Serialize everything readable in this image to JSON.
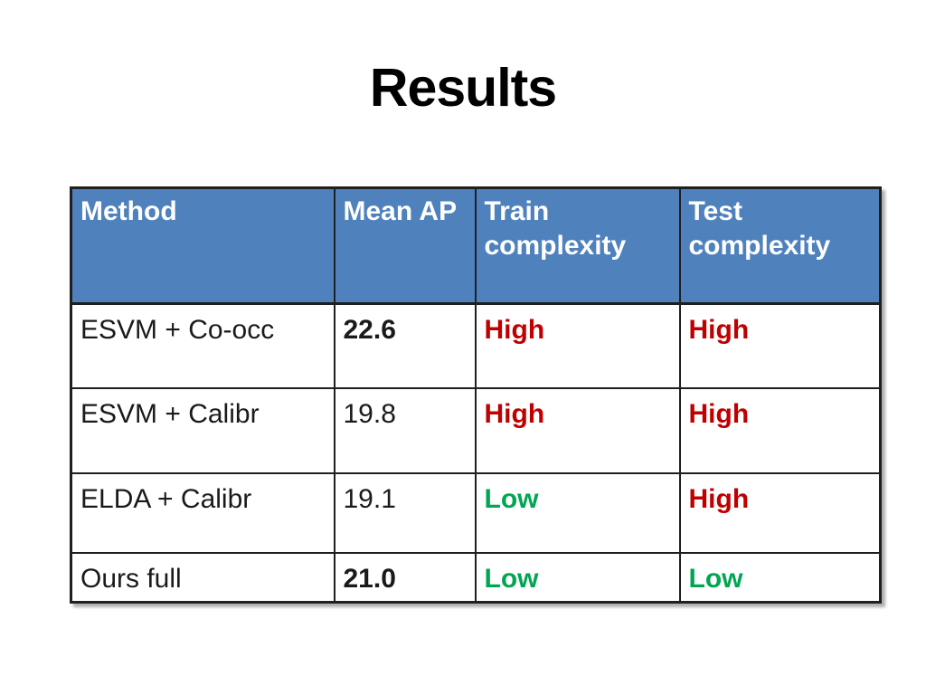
{
  "slide": {
    "title": "Results"
  },
  "table": {
    "columns": [
      "Method",
      "Mean AP",
      "Train complexity",
      "Test complexity"
    ],
    "rows": [
      {
        "method": "ESVM + Co-occ",
        "mean_ap": "22.6",
        "train": "High",
        "test": "High"
      },
      {
        "method": "ESVM + Calibr",
        "mean_ap": "19.8",
        "train": "High",
        "test": "High"
      },
      {
        "method": "ELDA + Calibr",
        "mean_ap": "19.1",
        "train": "Low",
        "test": "High"
      },
      {
        "method": "Ours full",
        "mean_ap": "21.0",
        "train": "Low",
        "test": "Low"
      }
    ],
    "colors": {
      "header_bg": "#4f81bd",
      "header_text": "#ffffff",
      "high": "#c00000",
      "low": "#00a651",
      "border": "#1f1f1f"
    }
  },
  "chart_data": {
    "type": "table",
    "title": "Results",
    "columns": [
      "Method",
      "Mean AP",
      "Train complexity",
      "Test complexity"
    ],
    "rows": [
      [
        "ESVM + Co-occ",
        22.6,
        "High",
        "High"
      ],
      [
        "ESVM + Calibr",
        19.8,
        "High",
        "High"
      ],
      [
        "ELDA + Calibr",
        19.1,
        "Low",
        "High"
      ],
      [
        "Ours full",
        21.0,
        "Low",
        "Low"
      ]
    ]
  }
}
